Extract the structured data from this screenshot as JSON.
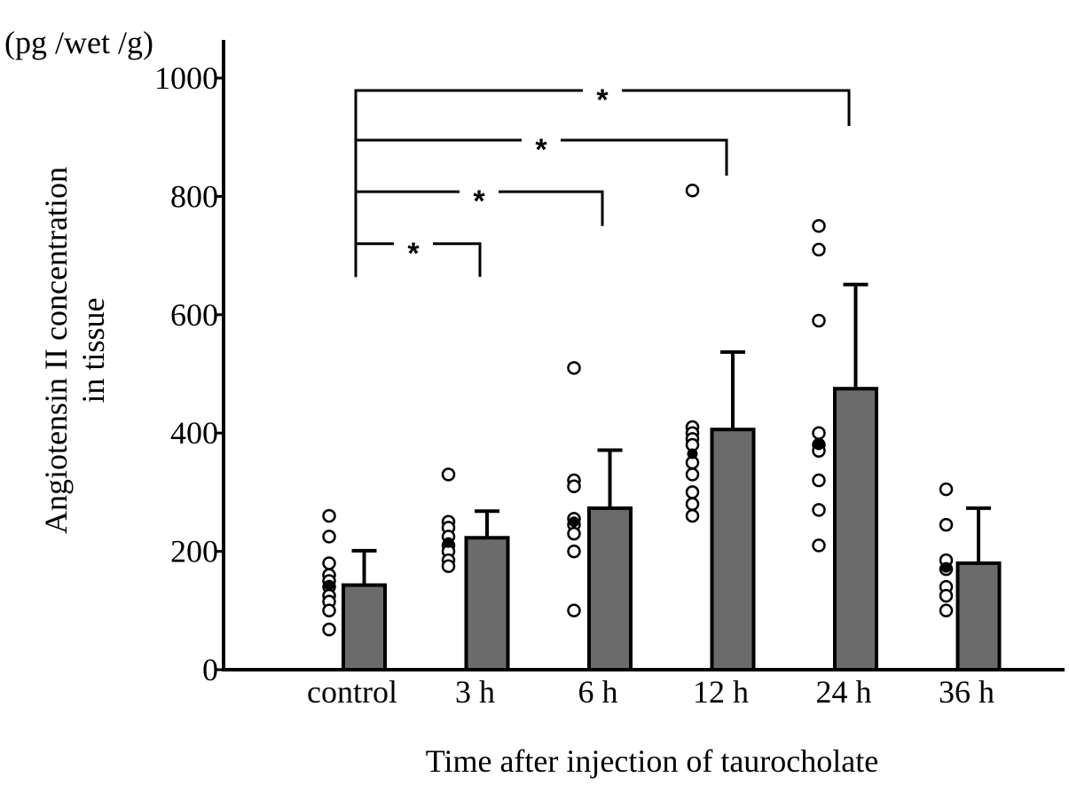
{
  "chart_data": {
    "type": "bar",
    "title": "",
    "units_label": "(pg /wet /g)",
    "ylabel_lines": [
      "Angiotensin II concentration",
      "in tissue"
    ],
    "xlabel": "Time after injection of taurocholate",
    "ylim": [
      0,
      1000
    ],
    "yticks": [
      0,
      200,
      400,
      600,
      800,
      1000
    ],
    "categories": [
      "control",
      "3 h",
      "6 h",
      "12 h",
      "24 h",
      "36 h"
    ],
    "values": [
      143,
      223,
      273,
      406,
      475,
      180
    ],
    "error_upper": [
      201,
      268,
      371,
      537,
      651,
      273
    ],
    "individual_points": [
      [
        260,
        225,
        180,
        160,
        150,
        140,
        125,
        115,
        100,
        68
      ],
      [
        330,
        250,
        240,
        225,
        210,
        200,
        185,
        175
      ],
      [
        510,
        320,
        310,
        255,
        245,
        230,
        200,
        100
      ],
      [
        810,
        410,
        400,
        390,
        380,
        350,
        330,
        300,
        280,
        260
      ],
      [
        750,
        710,
        590,
        400,
        380,
        370,
        320,
        270,
        210
      ],
      [
        305,
        245,
        185,
        170,
        140,
        125,
        100
      ]
    ],
    "medians": [
      143,
      215,
      250,
      365,
      380,
      173
    ],
    "significance": [
      {
        "from": "control",
        "to": "3 h",
        "label": "*",
        "level": 720,
        "right_leg_end": 664
      },
      {
        "from": "control",
        "to": "6 h",
        "label": "*",
        "level": 808,
        "right_leg_end": 750
      },
      {
        "from": "control",
        "to": "12 h",
        "label": "*",
        "level": 895,
        "right_leg_end": 835
      },
      {
        "from": "control",
        "to": "24 h",
        "label": "*",
        "level": 979,
        "right_leg_end": 919
      }
    ],
    "sig_left_leg_end": 664,
    "bar_color": "#6b6b6b",
    "grid": false,
    "legend": "none"
  }
}
